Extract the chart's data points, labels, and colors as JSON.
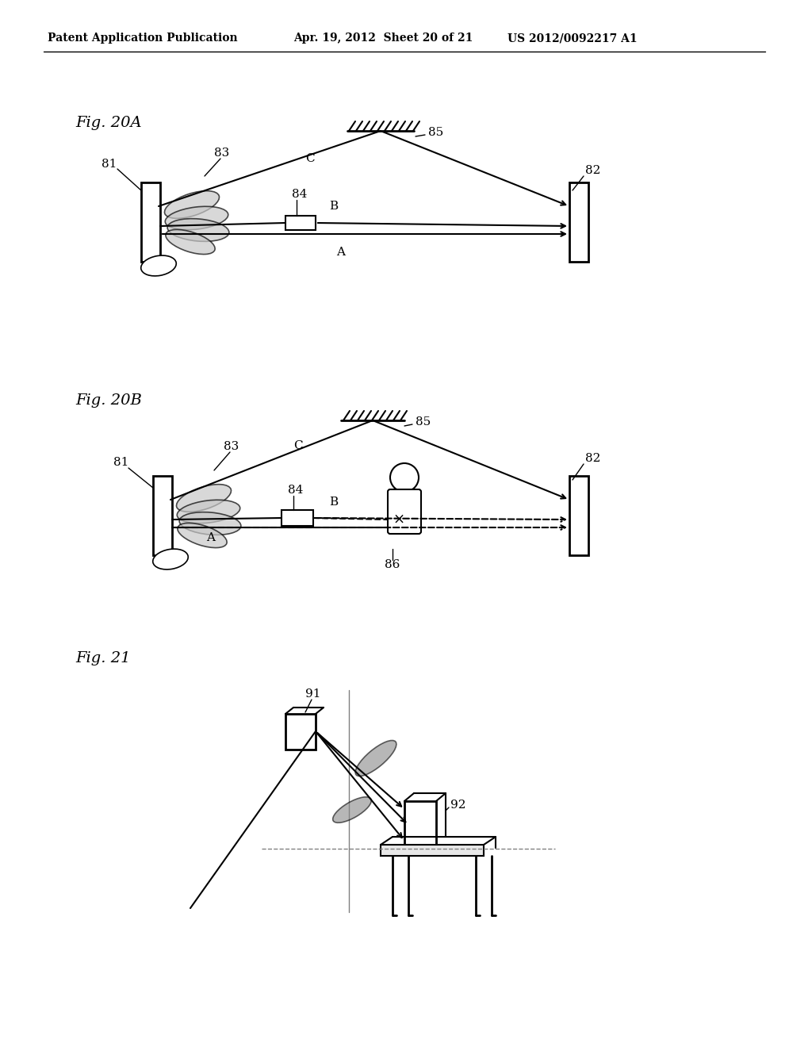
{
  "bg_color": "#ffffff",
  "line_color": "#000000",
  "header_text_left": "Patent Application Publication",
  "header_text_mid": "Apr. 19, 2012  Sheet 20 of 21",
  "header_text_right": "US 2012/0092217 A1"
}
